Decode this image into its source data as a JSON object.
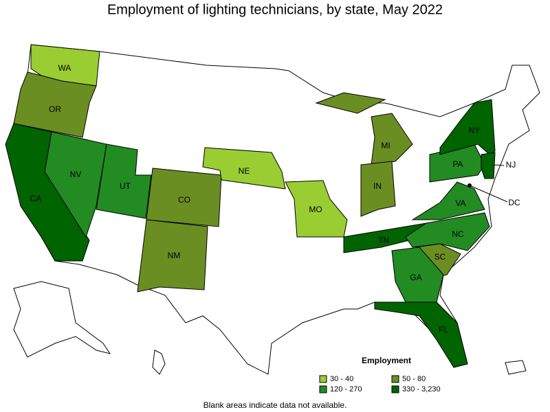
{
  "title": "Employment of lighting technicians, by state, May 2022",
  "states": [
    {
      "label": "WA",
      "color": "#9acd32"
    },
    {
      "label": "OR",
      "color": "#6b8e23"
    },
    {
      "label": "CA",
      "color": "#006400"
    },
    {
      "label": "NV",
      "color": "#228b22"
    },
    {
      "label": "UT",
      "color": "#228b22"
    },
    {
      "label": "CO",
      "color": "#6b8e23"
    },
    {
      "label": "NM",
      "color": "#6b8e23"
    },
    {
      "label": "NE",
      "color": "#9acd32"
    },
    {
      "label": "MO",
      "color": "#9acd32"
    },
    {
      "label": "MI",
      "color": "#6b8e23"
    },
    {
      "label": "IN",
      "color": "#6b8e23"
    },
    {
      "label": "TN",
      "color": "#006400"
    },
    {
      "label": "PA",
      "color": "#228b22"
    },
    {
      "label": "NY",
      "color": "#006400"
    },
    {
      "label": "NJ",
      "color": "#006400"
    },
    {
      "label": "VA",
      "color": "#228b22"
    },
    {
      "label": "NC",
      "color": "#228b22"
    },
    {
      "label": "SC",
      "color": "#6b8e23"
    },
    {
      "label": "GA",
      "color": "#228b22"
    },
    {
      "label": "FL",
      "color": "#006400"
    },
    {
      "label": "DC",
      "color": "#000000"
    }
  ],
  "legend": {
    "title": "Employment",
    "items": [
      {
        "label": "30 - 40",
        "color": "#9acd32"
      },
      {
        "label": "50 - 80",
        "color": "#6b8e23"
      },
      {
        "label": "120 - 270",
        "color": "#228b22"
      },
      {
        "label": "330 - 3,230",
        "color": "#006400"
      }
    ]
  },
  "footnote": "Blank areas indicate data not available."
}
